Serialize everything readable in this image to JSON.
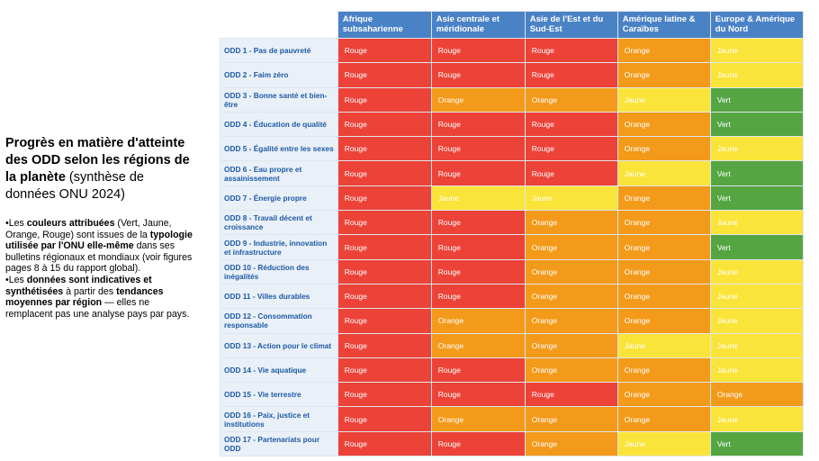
{
  "left": {
    "title_bold": "Progrès en matière d'atteinte des ODD selon les régions de la planète",
    "title_rest": "(synthèse de données ONU 2024)",
    "notes": [
      [
        {
          "t": "•Les ",
          "b": false
        },
        {
          "t": "couleurs attribuées",
          "b": true
        },
        {
          "t": " (Vert, Jaune, Orange, Rouge) sont issues de la ",
          "b": false
        },
        {
          "t": "typologie utilisée par l'ONU elle-même",
          "b": true
        },
        {
          "t": " dans ses bulletins régionaux et mondiaux (voir figures pages 8 à 15 du rapport global).",
          "b": false
        }
      ],
      [
        {
          "t": "•Les ",
          "b": false
        },
        {
          "t": "données sont indicatives et synthétisées",
          "b": true
        },
        {
          "t": " à partir des ",
          "b": false
        },
        {
          "t": "tendances moyennes par région",
          "b": true
        },
        {
          "t": " — elles ne remplacent pas une analyse pays par pays.",
          "b": false
        }
      ]
    ]
  },
  "table": {
    "columns": [
      "Afrique subsaharienne",
      "Asie centrale et méridionale",
      "Asie de l'Est et du Sud-Est",
      "Amérique latine & Caraïbes",
      "Europe & Amérique du Nord"
    ],
    "rows": [
      {
        "label": "ODD 1 - Pas de pauvreté",
        "values": [
          "Rouge",
          "Rouge",
          "Rouge",
          "Orange",
          "Jaune"
        ]
      },
      {
        "label": "ODD 2 - Faim zéro",
        "values": [
          "Rouge",
          "Rouge",
          "Rouge",
          "Orange",
          "Jaune"
        ]
      },
      {
        "label": "ODD 3 - Bonne santé et bien-être",
        "values": [
          "Rouge",
          "Orange",
          "Orange",
          "Jaune",
          "Vert"
        ]
      },
      {
        "label": "ODD 4 - Éducation de qualité",
        "values": [
          "Rouge",
          "Rouge",
          "Rouge",
          "Orange",
          "Vert"
        ]
      },
      {
        "label": "ODD 5 - Égalité entre les sexes",
        "values": [
          "Rouge",
          "Rouge",
          "Rouge",
          "Orange",
          "Jaune"
        ]
      },
      {
        "label": "ODD 6 - Eau propre et assainissement",
        "values": [
          "Rouge",
          "Rouge",
          "Rouge",
          "Jaune",
          "Vert"
        ]
      },
      {
        "label": "ODD 7 - Énergie propre",
        "values": [
          "Rouge",
          "Jaune",
          "Jaune",
          "Orange",
          "Vert"
        ]
      },
      {
        "label": "ODD 8 - Travail décent et croissance",
        "values": [
          "Rouge",
          "Rouge",
          "Orange",
          "Orange",
          "Jaune"
        ]
      },
      {
        "label": "ODD 9 - Industrie, innovation et infrastructure",
        "values": [
          "Rouge",
          "Rouge",
          "Orange",
          "Orange",
          "Vert"
        ]
      },
      {
        "label": "ODD 10 - Réduction des inégalités",
        "values": [
          "Rouge",
          "Rouge",
          "Orange",
          "Orange",
          "Jaune"
        ]
      },
      {
        "label": "ODD 11 - Villes durables",
        "values": [
          "Rouge",
          "Rouge",
          "Orange",
          "Orange",
          "Jaune"
        ]
      },
      {
        "label": "ODD 12 - Consommation responsable",
        "values": [
          "Rouge",
          "Orange",
          "Orange",
          "Orange",
          "Jaune"
        ]
      },
      {
        "label": "ODD 13 - Action pour le climat",
        "values": [
          "Rouge",
          "Orange",
          "Orange",
          "Jaune",
          "Jaune"
        ]
      },
      {
        "label": "ODD 14 - Vie aquatique",
        "values": [
          "Rouge",
          "Rouge",
          "Orange",
          "Orange",
          "Jaune"
        ]
      },
      {
        "label": "ODD 15 - Vie terrestre",
        "values": [
          "Rouge",
          "Rouge",
          "Rouge",
          "Orange",
          "Orange"
        ]
      },
      {
        "label": "ODD 16 - Paix, justice et institutions",
        "values": [
          "Rouge",
          "Orange",
          "Orange",
          "Orange",
          "Jaune"
        ]
      },
      {
        "label": "ODD 17 - Partenariats pour ODD",
        "values": [
          "Rouge",
          "Rouge",
          "Orange",
          "Jaune",
          "Vert"
        ]
      }
    ]
  },
  "colors": {
    "header": "#4a82c6",
    "Rouge": "#ec4238",
    "Orange": "#f39a1a",
    "Jaune": "#fbe43a",
    "Vert": "#55a543"
  }
}
